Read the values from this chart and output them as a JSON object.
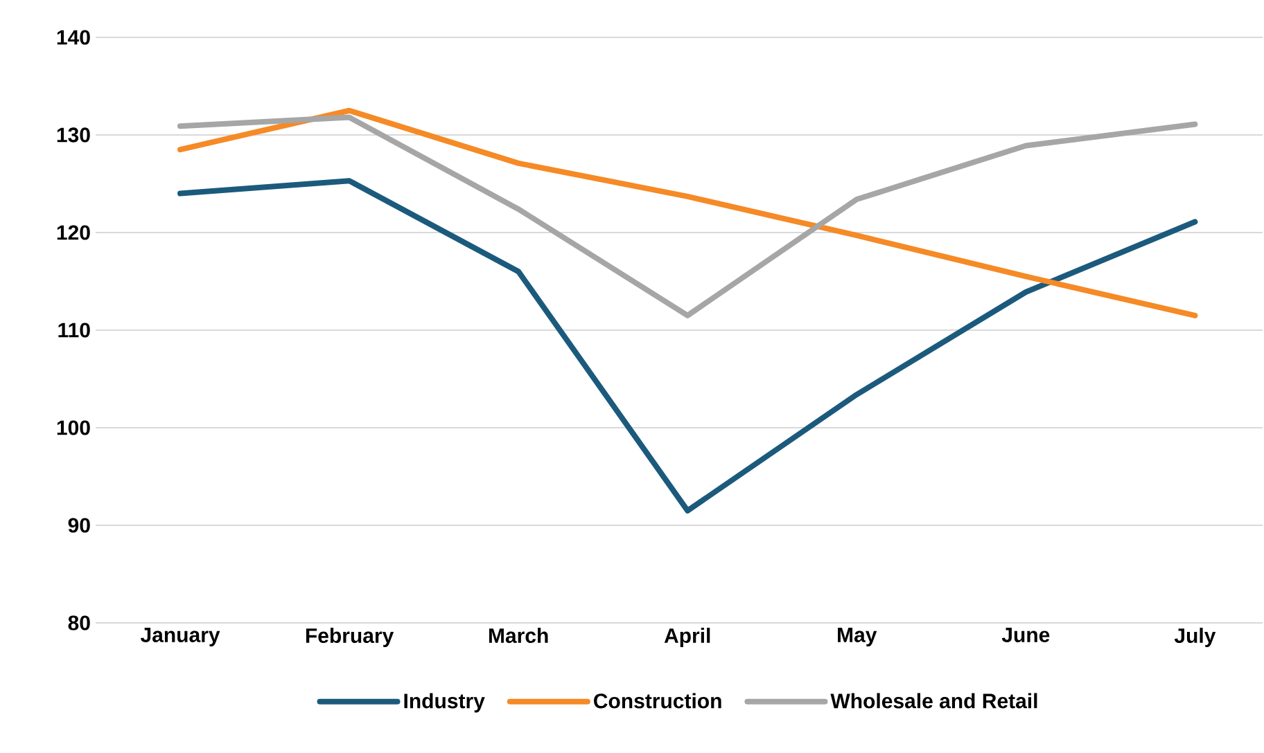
{
  "chart_data": {
    "type": "line",
    "categories": [
      "January",
      "February",
      "March",
      "April",
      "May",
      "June",
      "July"
    ],
    "series": [
      {
        "name": "Industry",
        "color": "#1b5a7c",
        "values": [
          124.0,
          125.3,
          116.0,
          91.5,
          103.4,
          113.9,
          121.1
        ]
      },
      {
        "name": "Construction",
        "color": "#f58a26",
        "values": [
          128.5,
          132.5,
          127.1,
          123.7,
          119.7,
          115.5,
          111.5
        ]
      },
      {
        "name": "Wholesale and Retail",
        "color": "#a6a6a6",
        "values": [
          130.9,
          131.8,
          122.4,
          111.5,
          123.4,
          128.9,
          131.1
        ]
      }
    ],
    "ylim": [
      80,
      140
    ],
    "yticks": [
      80,
      90,
      100,
      110,
      120,
      130,
      140
    ],
    "grid": "y",
    "legend": "bottom",
    "marker": "none",
    "line_style": "solid"
  }
}
